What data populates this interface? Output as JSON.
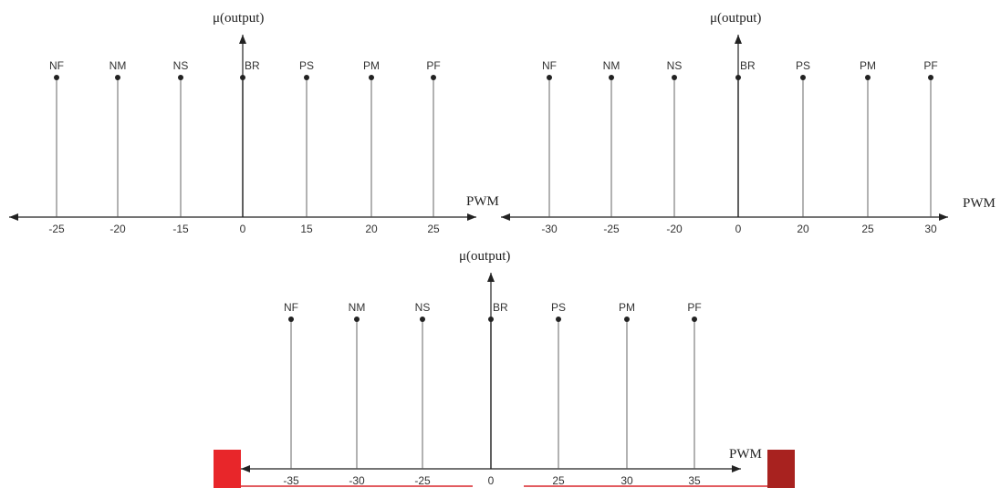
{
  "chart_data": [
    {
      "type": "stem",
      "ylabel": "μ(output)",
      "xlabel": "PWM",
      "series": [
        {
          "name": "NF",
          "x": -25,
          "y": 1
        },
        {
          "name": "NM",
          "x": -20,
          "y": 1
        },
        {
          "name": "NS",
          "x": -15,
          "y": 1
        },
        {
          "name": "BR",
          "x": 0,
          "y": 1
        },
        {
          "name": "PS",
          "x": 15,
          "y": 1
        },
        {
          "name": "PM",
          "x": 20,
          "y": 1
        },
        {
          "name": "PF",
          "x": 25,
          "y": 1
        }
      ],
      "tick_labels": [
        "-25",
        "-20",
        "-15",
        "0",
        "15",
        "20",
        "25"
      ]
    },
    {
      "type": "stem",
      "ylabel": "μ(output)",
      "xlabel": "PWM",
      "series": [
        {
          "name": "NF",
          "x": -30,
          "y": 1
        },
        {
          "name": "NM",
          "x": -25,
          "y": 1
        },
        {
          "name": "NS",
          "x": -20,
          "y": 1
        },
        {
          "name": "BR",
          "x": 0,
          "y": 1
        },
        {
          "name": "PS",
          "x": 20,
          "y": 1
        },
        {
          "name": "PM",
          "x": 25,
          "y": 1
        },
        {
          "name": "PF",
          "x": 30,
          "y": 1
        }
      ],
      "tick_labels": [
        "-30",
        "-25",
        "-20",
        "0",
        "20",
        "25",
        "30"
      ]
    },
    {
      "type": "stem",
      "ylabel": "μ(output)",
      "xlabel": "PWM",
      "series": [
        {
          "name": "NF",
          "x": -35,
          "y": 1
        },
        {
          "name": "NM",
          "x": -30,
          "y": 1
        },
        {
          "name": "NS",
          "x": -25,
          "y": 1
        },
        {
          "name": "BR",
          "x": 0,
          "y": 1
        },
        {
          "name": "PS",
          "x": 25,
          "y": 1
        },
        {
          "name": "PM",
          "x": 30,
          "y": 1
        },
        {
          "name": "PF",
          "x": 35,
          "y": 1
        }
      ],
      "tick_labels": [
        "-35",
        "-30",
        "-25",
        "0",
        "25",
        "30",
        "35"
      ]
    }
  ],
  "colors": {
    "axis": "#222222",
    "stem": "#555555",
    "marker": "#222222",
    "red_block_left": "#e8262a",
    "red_block_right": "#a8221f",
    "red_line": "#d9262b"
  }
}
